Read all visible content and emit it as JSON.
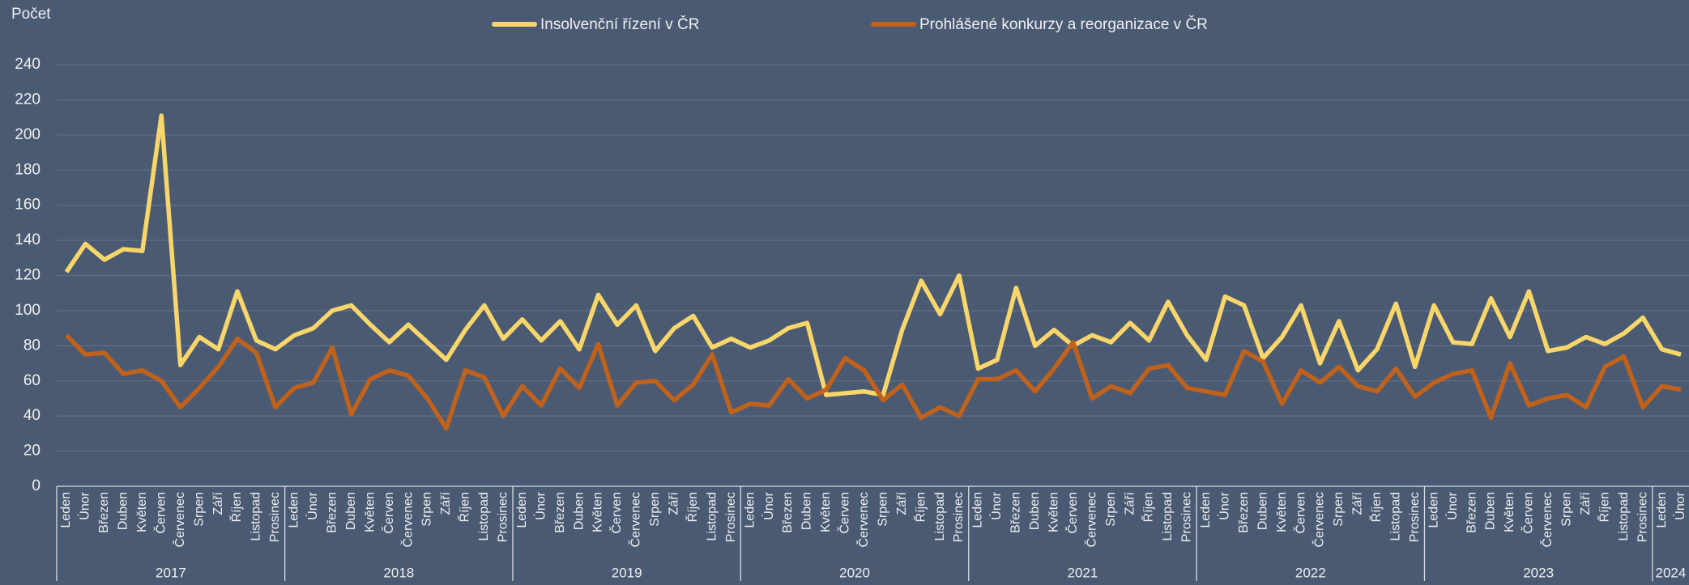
{
  "chart_data": {
    "type": "line",
    "y_label": "Počet",
    "categories": [
      "Leden",
      "Únor",
      "Březen",
      "Duben",
      "Květen",
      "Červen",
      "Červenec",
      "Srpen",
      "Září",
      "Říjen",
      "Listopad",
      "Prosinec",
      "Leden",
      "Únor",
      "Březen",
      "Duben",
      "Květen",
      "Červen",
      "Červenec",
      "Srpen",
      "Září",
      "Říjen",
      "Listopad",
      "Prosinec",
      "Leden",
      "Únor",
      "Březen",
      "Duben",
      "Květen",
      "Červen",
      "Červenec",
      "Srpen",
      "Září",
      "Říjen",
      "Listopad",
      "Prosinec",
      "Leden",
      "Únor",
      "Březen",
      "Duben",
      "Květen",
      "Červen",
      "Červenec",
      "Srpen",
      "Září",
      "Říjen",
      "Listopad",
      "Prosinec",
      "Leden",
      "Únor",
      "Březen",
      "Duben",
      "Květen",
      "Červen",
      "Červenec",
      "Srpen",
      "Září",
      "Říjen",
      "Listopad",
      "Prosinec",
      "Leden",
      "Únor",
      "Březen",
      "Duben",
      "Květen",
      "Červen",
      "Červenec",
      "Srpen",
      "Září",
      "Říjen",
      "Listopad",
      "Prosinec",
      "Leden",
      "Únor",
      "Březen",
      "Duben",
      "Květen",
      "Červen",
      "Červenec",
      "Srpen",
      "Září",
      "Říjen",
      "Listopad",
      "Prosinec",
      "Leden",
      "Únor"
    ],
    "groups": [
      {
        "label": "2017",
        "count": 12
      },
      {
        "label": "2018",
        "count": 12
      },
      {
        "label": "2019",
        "count": 12
      },
      {
        "label": "2020",
        "count": 12
      },
      {
        "label": "2021",
        "count": 12
      },
      {
        "label": "2022",
        "count": 12
      },
      {
        "label": "2023",
        "count": 12
      },
      {
        "label": "2024",
        "count": 2
      }
    ],
    "series": [
      {
        "name": "Insolvenční řízení v ČR",
        "color": "#f9d66a",
        "values": [
          122,
          138,
          129,
          135,
          134,
          211,
          69,
          85,
          78,
          111,
          83,
          78,
          86,
          90,
          100,
          103,
          92,
          82,
          92,
          82,
          72,
          89,
          103,
          84,
          95,
          83,
          94,
          78,
          109,
          92,
          103,
          77,
          90,
          97,
          79,
          84,
          79,
          83,
          90,
          93,
          52,
          53,
          54,
          52,
          89,
          117,
          98,
          120,
          67,
          72,
          113,
          80,
          89,
          80,
          86,
          82,
          93,
          83,
          105,
          86,
          72,
          108,
          103,
          73,
          85,
          103,
          70,
          94,
          66,
          78,
          104,
          68,
          103,
          82,
          81,
          107,
          85,
          111,
          77,
          79,
          85,
          81,
          87,
          96,
          78,
          75
        ]
      },
      {
        "name": "Prohlášené konkurzy a reorganizace v ČR",
        "color": "#c0621c",
        "values": [
          86,
          75,
          76,
          64,
          66,
          60,
          45,
          56,
          68,
          84,
          76,
          45,
          56,
          59,
          79,
          41,
          61,
          66,
          63,
          50,
          33,
          66,
          62,
          40,
          57,
          46,
          67,
          56,
          81,
          46,
          59,
          60,
          49,
          58,
          75,
          42,
          47,
          46,
          61,
          50,
          55,
          73,
          66,
          49,
          58,
          39,
          45,
          40,
          61,
          61,
          66,
          54,
          67,
          82,
          50,
          57,
          53,
          67,
          69,
          56,
          54,
          52,
          77,
          71,
          47,
          66,
          59,
          68,
          57,
          54,
          67,
          51,
          59,
          64,
          66,
          39,
          70,
          46,
          50,
          52,
          45,
          68,
          74,
          45,
          57,
          55
        ]
      }
    ],
    "ylim": [
      0,
      240
    ],
    "yticks": [
      0,
      20,
      40,
      60,
      80,
      100,
      120,
      140,
      160,
      180,
      200,
      220,
      240
    ],
    "grid": true,
    "legend": "top"
  }
}
